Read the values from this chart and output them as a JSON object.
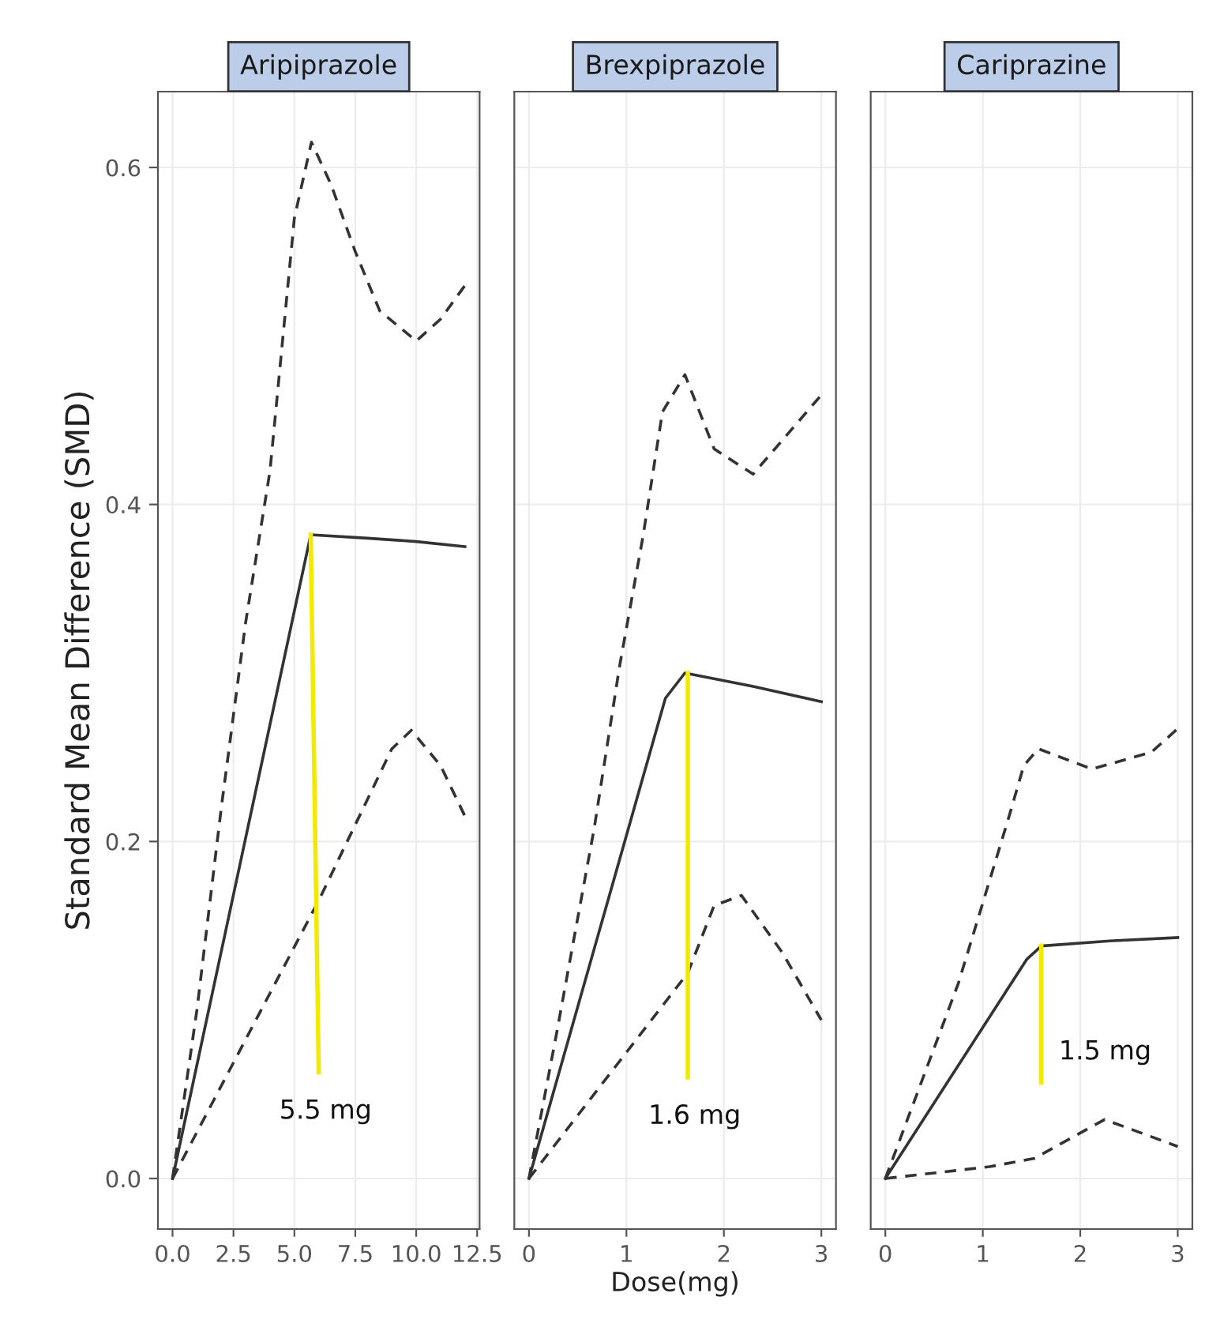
{
  "chart_data": [
    {
      "type": "line",
      "title": "Aripiprazole",
      "ylabel": "Standard Mean Difference (SMD)",
      "xlim": [
        -0.6,
        12.6
      ],
      "ylim": [
        -0.03,
        0.645
      ],
      "xticks": [
        {
          "value": 0,
          "label": "0.0"
        },
        {
          "value": 2.5,
          "label": "2.5"
        },
        {
          "value": 5,
          "label": "5.0"
        },
        {
          "value": 7.5,
          "label": "7.5"
        },
        {
          "value": 10,
          "label": "10.0"
        },
        {
          "value": 12.5,
          "label": "12.5"
        }
      ],
      "yticks": [
        {
          "value": 0,
          "label": "0.0"
        },
        {
          "value": 0.2,
          "label": "0.2"
        },
        {
          "value": 0.4,
          "label": "0.4"
        },
        {
          "value": 0.6,
          "label": "0.6"
        }
      ],
      "grid": true,
      "legend": false,
      "series": [
        {
          "color": "#333333",
          "line_style": "solid",
          "x": [
            0,
            5.67,
            8,
            10,
            12
          ],
          "values": [
            0,
            0.382,
            0.38,
            0.378,
            0.375
          ]
        },
        {
          "color": "#333333",
          "line_style": "dashed",
          "x": [
            0,
            1,
            2,
            3,
            4,
            5,
            5.7,
            6.5,
            7.5,
            8.5,
            10,
            11,
            12
          ],
          "values": [
            0,
            0.1,
            0.22,
            0.33,
            0.42,
            0.57,
            0.615,
            0.59,
            0.55,
            0.515,
            0.497,
            0.51,
            0.53
          ]
        },
        {
          "color": "#333333",
          "line_style": "dashed",
          "x": [
            0,
            6,
            8,
            9,
            9.8,
            11,
            12
          ],
          "values": [
            0,
            0.165,
            0.225,
            0.255,
            0.266,
            0.245,
            0.215
          ]
        },
        {
          "color": "#f2ea00",
          "line_style": "solid",
          "x": [
            5.67,
            6.0
          ],
          "values": [
            0.382,
            0.063
          ]
        }
      ],
      "annotations": [
        {
          "text": "5.5 mg",
          "x": 6.0,
          "y": 0.063
        }
      ]
    },
    {
      "type": "line",
      "title": "Brexpiprazole",
      "xlabel": "Dose(mg)",
      "xlim": [
        -0.15,
        3.15
      ],
      "ylim": [
        -0.03,
        0.645
      ],
      "xticks": [
        0,
        1,
        2,
        3
      ],
      "yticks": [
        0,
        0.2,
        0.4,
        0.6
      ],
      "tick_labels": "x",
      "grid": true,
      "legend": false,
      "series": [
        {
          "color": "#333333",
          "line_style": "solid",
          "x": [
            0,
            1.4,
            1.6,
            2.3,
            3
          ],
          "values": [
            0,
            0.285,
            0.3,
            0.292,
            0.283
          ]
        },
        {
          "color": "#333333",
          "line_style": "dashed",
          "x": [
            0,
            0.28,
            0.67,
            0.93,
            1.17,
            1.37,
            1.6,
            1.9,
            2.3,
            3
          ],
          "values": [
            0,
            0.085,
            0.208,
            0.304,
            0.381,
            0.455,
            0.477,
            0.433,
            0.418,
            0.465
          ]
        },
        {
          "color": "#333333",
          "line_style": "dashed",
          "x": [
            0,
            1.63,
            1.9,
            2.18,
            2.6,
            3
          ],
          "values": [
            0,
            0.122,
            0.162,
            0.168,
            0.134,
            0.094
          ]
        },
        {
          "color": "#f2ea00",
          "line_style": "solid",
          "x": [
            1.63,
            1.63
          ],
          "values": [
            0.3,
            0.06
          ]
        }
      ],
      "annotations": [
        {
          "text": "1.6 mg",
          "x": 1.63,
          "y": 0.06
        }
      ]
    },
    {
      "type": "line",
      "title": "Cariprazine",
      "xlim": [
        -0.15,
        3.15
      ],
      "ylim": [
        -0.03,
        0.645
      ],
      "xticks": [
        0,
        1,
        2,
        3
      ],
      "yticks": [
        0,
        0.2,
        0.4,
        0.6
      ],
      "tick_labels": "x",
      "grid": true,
      "legend": false,
      "series": [
        {
          "color": "#333333",
          "line_style": "solid",
          "x": [
            0,
            1.45,
            1.6,
            2.3,
            3
          ],
          "values": [
            0,
            0.13,
            0.138,
            0.141,
            0.143
          ]
        },
        {
          "color": "#333333",
          "line_style": "dashed",
          "x": [
            0,
            0.75,
            1.27,
            1.42,
            1.57,
            2.12,
            2.73,
            3
          ],
          "values": [
            0,
            0.116,
            0.215,
            0.245,
            0.255,
            0.243,
            0.253,
            0.267
          ]
        },
        {
          "color": "#333333",
          "line_style": "dashed",
          "x": [
            0,
            1.07,
            1.53,
            2.25,
            3
          ],
          "values": [
            0,
            0.007,
            0.012,
            0.035,
            0.019
          ]
        },
        {
          "color": "#f2ea00",
          "line_style": "solid",
          "x": [
            1.6,
            1.6
          ],
          "values": [
            0.138,
            0.057
          ]
        }
      ],
      "annotations": [
        {
          "text": "1.5 mg",
          "x": 1.6,
          "y": 0.057
        }
      ]
    }
  ]
}
